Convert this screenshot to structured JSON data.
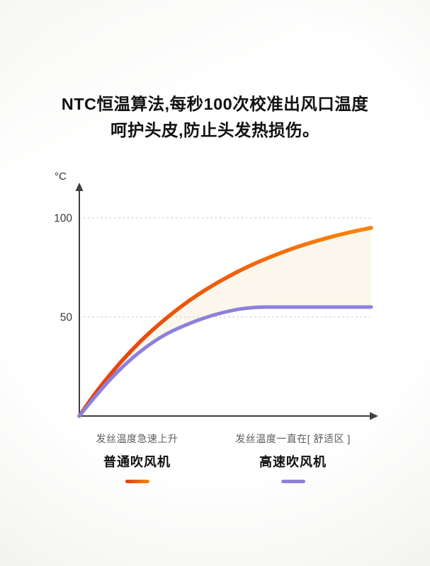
{
  "title": {
    "line1": "NTC恒温算法,每秒100次校准出风口温度",
    "line2": "呵护头皮,防止头发热损伤。"
  },
  "chart_data": {
    "type": "line",
    "title": "",
    "xlabel": "",
    "ylabel": "°C",
    "xlim": [
      0,
      1
    ],
    "ylim": [
      0,
      115
    ],
    "yticks": [
      100,
      50
    ],
    "xticks": [],
    "grid": "dotted-horizontal",
    "legend_position": "bottom",
    "axis_color": "#3f3f3f",
    "grid_color": "#c9c9c9",
    "tick_color": "#3a3a3a",
    "fill_between_color": "#f7f0da",
    "fill_between_opacity": 0.5,
    "x": [
      0,
      0.05,
      0.1,
      0.15,
      0.2,
      0.25,
      0.3,
      0.35,
      0.4,
      0.45,
      0.5,
      0.55,
      0.6,
      0.65,
      0.7,
      0.75,
      0.8,
      0.85,
      0.9,
      0.95,
      1
    ],
    "series": [
      {
        "name": "普通吹风机",
        "description": "发丝温度急速上升",
        "color": "#f06a0c",
        "gradient": [
          "#e43c0e",
          "#f9860a"
        ],
        "values": [
          0,
          10.5,
          19.9,
          28.5,
          36.3,
          43.3,
          49.6,
          55.4,
          60.6,
          65.3,
          69.5,
          73.4,
          76.9,
          80,
          82.9,
          85.5,
          87.8,
          89.9,
          91.8,
          93.5,
          95
        ]
      },
      {
        "name": "高速吹风机",
        "description": "发丝温度一直在[ 舒适区 ]",
        "color": "#8d80dc",
        "gradient": [
          "#8d80dc",
          "#8d80dc"
        ],
        "values": [
          0,
          9,
          17.5,
          25,
          31.5,
          37,
          41.5,
          45,
          48,
          50.5,
          52.5,
          54,
          54.8,
          55,
          55,
          55,
          55,
          55,
          55,
          55,
          55
        ]
      }
    ]
  }
}
